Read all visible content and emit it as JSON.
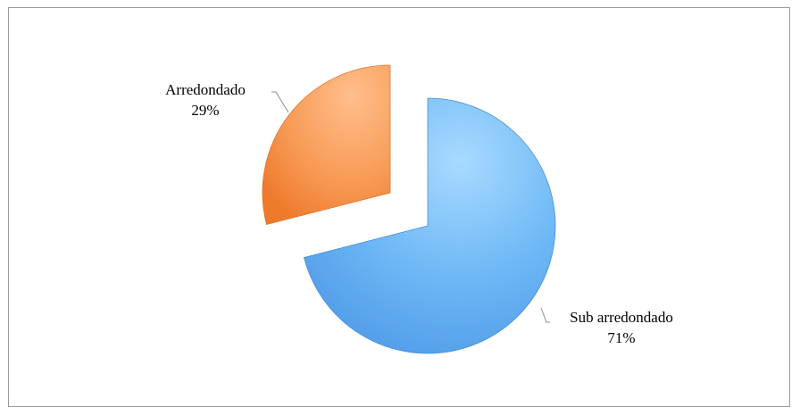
{
  "chart_data": {
    "type": "pie",
    "title": "",
    "categories": [
      "Sub arredondado",
      "Arredondado"
    ],
    "values": [
      71,
      29
    ],
    "value_labels": [
      "71%",
      "29%"
    ],
    "colors": [
      "#5aaaf0",
      "#f5883e"
    ],
    "exploded": true,
    "legend": "none"
  }
}
